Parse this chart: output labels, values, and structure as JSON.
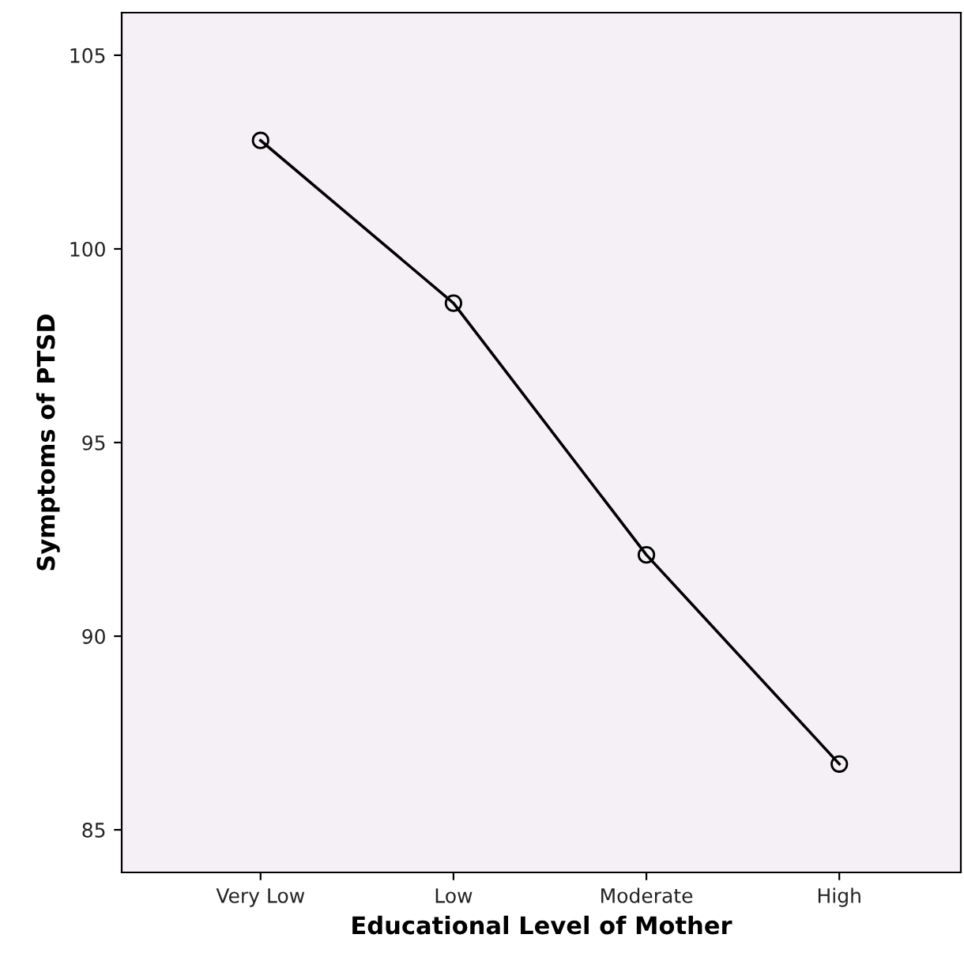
{
  "chart_data": {
    "type": "line",
    "xlabel": "Educational Level of Mother",
    "ylabel": "Symptoms of PTSD",
    "categories": [
      "Very Low",
      "Low",
      "Moderate",
      "High"
    ],
    "series": [
      {
        "color": "#000000",
        "values": [
          102.8,
          98.6,
          92.1,
          86.7
        ]
      }
    ],
    "ylim": [
      83.9,
      106.1
    ],
    "yticks": [
      85,
      90,
      95,
      100,
      105
    ],
    "marker": "circle",
    "line_style": "solid",
    "grid": false,
    "legend": false
  }
}
